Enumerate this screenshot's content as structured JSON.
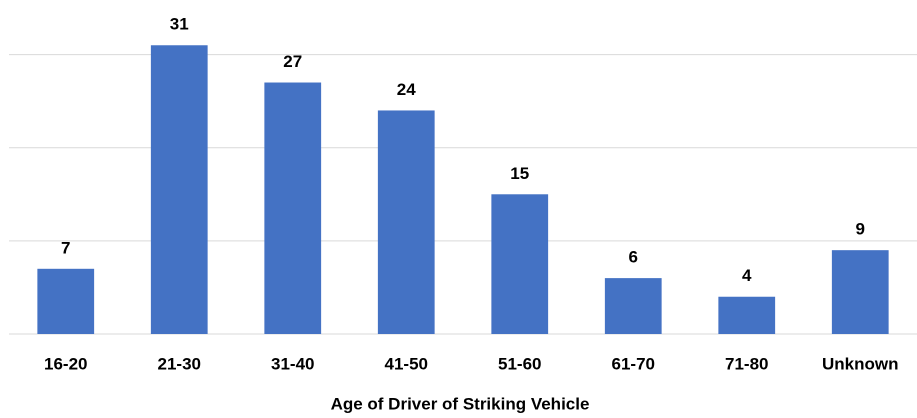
{
  "chart_data": {
    "type": "bar",
    "x_label": "Age of Driver of Striking Vehicle",
    "categories": [
      "16-20",
      "21-30",
      "31-40",
      "41-50",
      "51-60",
      "61-70",
      "71-80",
      "Unknown"
    ],
    "values": [
      7,
      31,
      27,
      24,
      15,
      6,
      4,
      9
    ],
    "color": "#4472c4",
    "ylim": [
      0,
      35
    ],
    "yticks": [
      0,
      10,
      20,
      30
    ],
    "grid": true
  }
}
